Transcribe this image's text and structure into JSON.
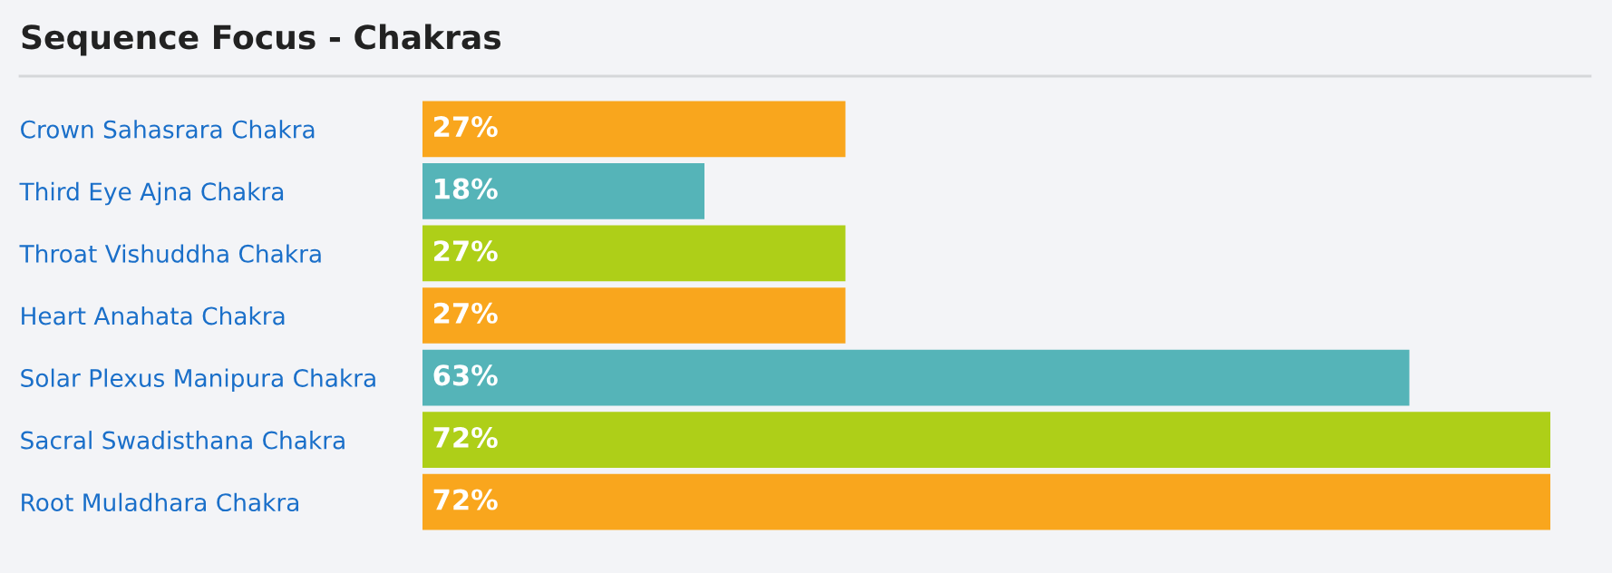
{
  "chart_data": {
    "type": "bar",
    "orientation": "horizontal",
    "title": "Sequence Focus - Chakras",
    "categories": [
      "Crown Sahasrara Chakra",
      "Third Eye Ajna Chakra",
      "Throat Vishuddha Chakra",
      "Heart Anahata Chakra",
      "Solar Plexus Manipura Chakra",
      "Sacral Swadisthana Chakra",
      "Root Muladhara Chakra"
    ],
    "values": [
      27,
      18,
      27,
      27,
      63,
      72,
      72
    ],
    "value_labels": [
      "27%",
      "18%",
      "27%",
      "27%",
      "63%",
      "72%",
      "72%"
    ],
    "colors": [
      "#f9a61d",
      "#55b4b8",
      "#aecf18",
      "#f9a61d",
      "#55b4b8",
      "#aecf18",
      "#f9a61d"
    ],
    "grid": false,
    "legend": false
  }
}
